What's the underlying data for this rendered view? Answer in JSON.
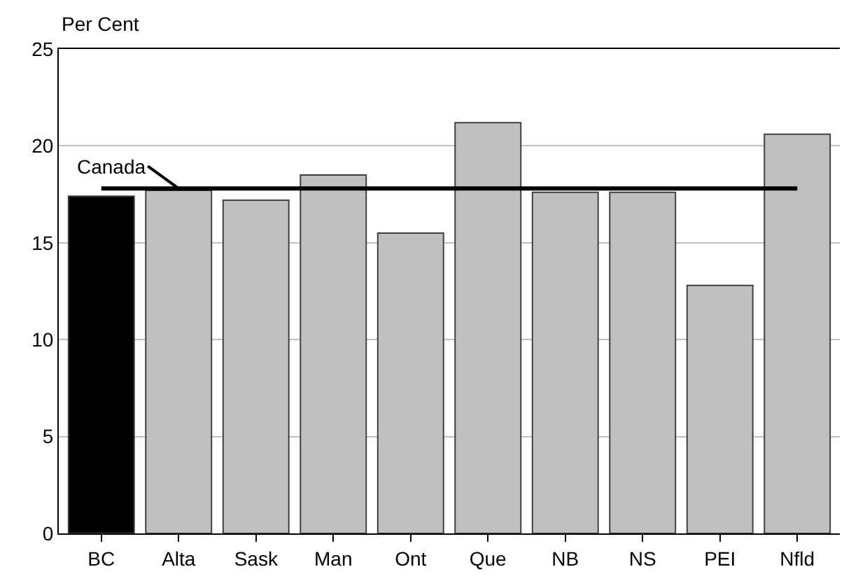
{
  "chart_data": {
    "type": "bar",
    "ylabel": "Per Cent",
    "categories": [
      "BC",
      "Alta",
      "Sask",
      "Man",
      "Ont",
      "Que",
      "NB",
      "NS",
      "PEI",
      "Nfld"
    ],
    "values": [
      17.4,
      17.7,
      17.2,
      18.5,
      15.5,
      21.2,
      17.6,
      17.6,
      12.8,
      20.6
    ],
    "colors": [
      "#000000",
      "#c0c0c0",
      "#c0c0c0",
      "#c0c0c0",
      "#c0c0c0",
      "#c0c0c0",
      "#c0c0c0",
      "#c0c0c0",
      "#c0c0c0",
      "#c0c0c0"
    ],
    "ylim": [
      0,
      25
    ],
    "yticks": [
      0,
      5,
      10,
      15,
      20,
      25
    ],
    "grid": "y",
    "ref_lines": [
      {
        "axis": "y",
        "value": 17.8,
        "label": "Canada",
        "color": "#000000"
      }
    ]
  }
}
